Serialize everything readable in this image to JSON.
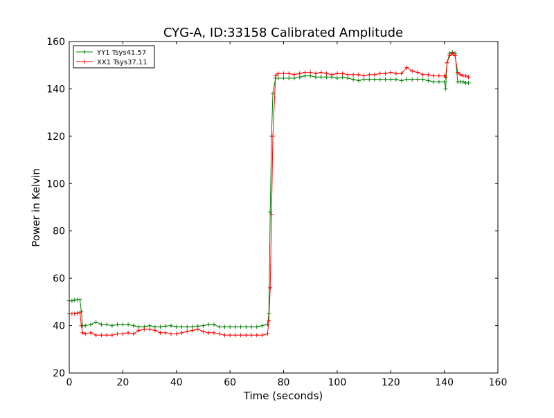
{
  "chart_data": {
    "type": "line",
    "title": "CYG-A, ID:33158 Calibrated Amplitude",
    "xlabel": "Time (seconds)",
    "ylabel": "Power in Kelvin",
    "xlim": [
      0,
      160
    ],
    "ylim": [
      20,
      160
    ],
    "xticks": [
      0,
      20,
      40,
      60,
      80,
      100,
      120,
      140,
      160
    ],
    "yticks": [
      20,
      40,
      60,
      80,
      100,
      120,
      140,
      160
    ],
    "grid": false,
    "legend_position": "top-left",
    "marker": "plus",
    "series": [
      {
        "name": "YY1 Tsys41.57",
        "color": "#008000",
        "x": [
          0,
          1,
          2,
          3,
          4,
          4.5,
          5,
          6,
          8,
          10,
          12,
          14,
          16,
          18,
          20,
          22,
          24,
          26,
          28,
          30,
          32,
          34,
          36,
          38,
          40,
          42,
          44,
          46,
          48,
          50,
          52,
          54,
          56,
          58,
          60,
          62,
          64,
          66,
          68,
          70,
          72,
          74,
          74.5,
          75,
          75.5,
          76,
          77,
          78,
          80,
          82,
          84,
          86,
          88,
          90,
          92,
          94,
          96,
          98,
          100,
          102,
          104,
          106,
          108,
          110,
          112,
          114,
          116,
          118,
          120,
          122,
          124,
          126,
          128,
          130,
          132,
          134,
          136,
          138,
          140,
          140.5,
          141,
          142,
          143,
          144,
          145,
          146,
          147,
          148,
          149
        ],
        "values": [
          50.5,
          50.5,
          50.8,
          51,
          51,
          46,
          40,
          40,
          40.5,
          41.5,
          40.5,
          40.5,
          40,
          40.5,
          40.5,
          40.5,
          40,
          39.5,
          39.5,
          40,
          39.5,
          39.5,
          39.8,
          40,
          39.5,
          39.5,
          39.5,
          39.5,
          39.8,
          40,
          40.5,
          40.5,
          39.5,
          39.5,
          39.5,
          39.5,
          39.5,
          39.5,
          39.5,
          39.5,
          40,
          40.5,
          45,
          88,
          120,
          138,
          144.5,
          144.5,
          144.5,
          144.5,
          144.5,
          145,
          145.5,
          145.5,
          145,
          145,
          145,
          145,
          144.5,
          145,
          144.5,
          144,
          143.5,
          144,
          144,
          144,
          144,
          144,
          144,
          144,
          143.5,
          144,
          144,
          144,
          144,
          143.5,
          143,
          143,
          143,
          140,
          151,
          155,
          155.5,
          155,
          143,
          143,
          143,
          142.5,
          142.5
        ]
      },
      {
        "name": "XX1 Tsys37.11",
        "color": "#ff0000",
        "x": [
          0,
          1,
          2,
          3,
          4,
          4.5,
          5,
          6,
          8,
          10,
          12,
          14,
          16,
          18,
          20,
          22,
          24,
          26,
          28,
          30,
          32,
          34,
          36,
          38,
          40,
          42,
          44,
          46,
          48,
          50,
          52,
          54,
          56,
          58,
          60,
          62,
          64,
          66,
          68,
          70,
          72,
          74,
          74.5,
          75,
          75.5,
          76,
          77,
          78,
          80,
          82,
          84,
          86,
          88,
          90,
          92,
          94,
          96,
          98,
          100,
          102,
          104,
          106,
          108,
          110,
          112,
          114,
          116,
          118,
          120,
          122,
          124,
          126,
          128,
          130,
          132,
          134,
          136,
          138,
          140,
          140.5,
          141,
          142,
          143,
          144,
          145,
          146,
          147,
          148,
          149
        ],
        "values": [
          45,
          45,
          45,
          45.3,
          45.5,
          40,
          37,
          36.5,
          37,
          36,
          36,
          36,
          36,
          36.5,
          36.5,
          37,
          36.5,
          38,
          38.5,
          38.5,
          38,
          37,
          37,
          36.5,
          36.5,
          37,
          37.5,
          38,
          38.5,
          37.5,
          37,
          37,
          36.5,
          36,
          36,
          36,
          36,
          36,
          36,
          36,
          36,
          36.5,
          42,
          56,
          87,
          120,
          145.5,
          146.5,
          146.5,
          146.5,
          146,
          146.5,
          147,
          147,
          146.5,
          147,
          146.5,
          146,
          146.5,
          146.5,
          146,
          146,
          146,
          145.5,
          146,
          146,
          146.5,
          146.5,
          147,
          146.5,
          146.5,
          149,
          147.5,
          147,
          146,
          146,
          145.5,
          145.5,
          145.5,
          145,
          151,
          154,
          155,
          154,
          147,
          146,
          145.5,
          145.5,
          145
        ]
      }
    ]
  }
}
